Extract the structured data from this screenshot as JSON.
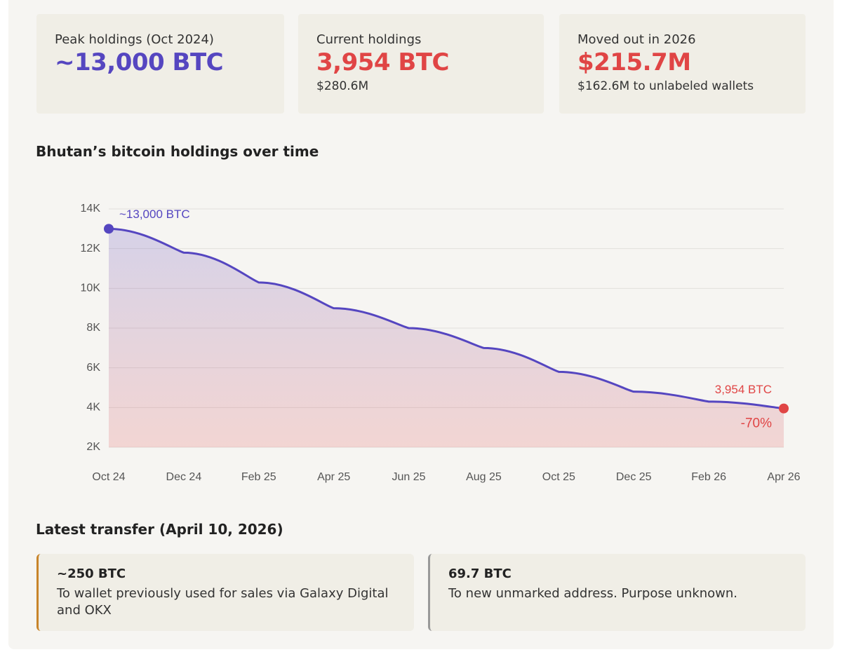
{
  "cards": [
    {
      "label": "Peak holdings (Oct 2024)",
      "value": "~13,000 BTC"
    },
    {
      "label": "Current holdings",
      "value": "3,954 BTC",
      "sub": "$280.6M"
    },
    {
      "label": "Moved out in 2026",
      "value": "$215.7M",
      "sub": "$162.6M to unlabeled wallets"
    }
  ],
  "chart_data": {
    "type": "line",
    "title": "Bhutan’s bitcoin holdings over time",
    "categories": [
      "Oct 24",
      "Dec 24",
      "Feb 25",
      "Apr 25",
      "Jun 25",
      "Aug 25",
      "Oct 25",
      "Dec 25",
      "Feb 26",
      "Apr 26"
    ],
    "values": [
      13000,
      11800,
      10300,
      9000,
      8000,
      7000,
      5800,
      4800,
      4300,
      3954
    ],
    "value_labels": [
      "~13,000 BTC",
      null,
      null,
      null,
      null,
      null,
      null,
      null,
      null,
      "3,954 BTC"
    ],
    "annotation": "-70%",
    "color": "#5546c0",
    "end_color": "#e04545",
    "ylim": [
      2000,
      14000
    ],
    "yticks": [
      {
        "value": 2000,
        "label": "2K"
      },
      {
        "value": 4000,
        "label": "4K"
      },
      {
        "value": 6000,
        "label": "6K"
      },
      {
        "value": 8000,
        "label": "8K"
      },
      {
        "value": 10000,
        "label": "10K"
      },
      {
        "value": 12000,
        "label": "12K"
      },
      {
        "value": 14000,
        "label": "14K"
      }
    ],
    "grid": true
  },
  "transfer": {
    "title": "Latest transfer (April 10, 2026)",
    "items": [
      {
        "amount": "~250 BTC",
        "text": "To wallet previously used for sales via Galaxy Digital and OKX"
      },
      {
        "amount": "69.7 BTC",
        "text": "To new unmarked address. Purpose unknown."
      }
    ]
  }
}
